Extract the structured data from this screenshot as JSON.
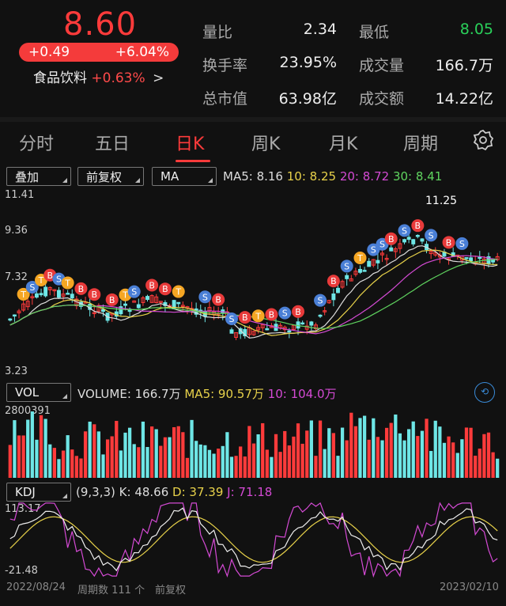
{
  "header": {
    "price": "8.60",
    "change": "+0.49",
    "change_pct": "+6.04%",
    "sector_name": "食品饮料",
    "sector_pct": "+0.63%",
    "sector_arrow": ">",
    "stats": [
      {
        "label": "量比",
        "value": "2.34",
        "color": "#eeeeee"
      },
      {
        "label": "最低",
        "value": "8.05",
        "color": "#2ad05a"
      },
      {
        "label": "换手率",
        "value": "23.95%",
        "color": "#eeeeee"
      },
      {
        "label": "成交量",
        "value": "166.7万",
        "color": "#eeeeee"
      },
      {
        "label": "总市值",
        "value": "63.98亿",
        "color": "#eeeeee"
      },
      {
        "label": "成交额",
        "value": "14.22亿",
        "color": "#eeeeee"
      }
    ]
  },
  "tabs": [
    "分时",
    "五日",
    "日K",
    "周K",
    "月K",
    "周期"
  ],
  "active_tab": "日K",
  "selectors": {
    "overlay": "叠加",
    "adjust": "前复权",
    "indicator": "MA"
  },
  "ma_legend": {
    "ma5": "MA5: 8.16",
    "ma10": "10: 8.25",
    "ma20": "20: 8.72",
    "ma30": "30: 8.41"
  },
  "price_axis": {
    "high": "11.41",
    "mid1": "9.36",
    "mid2": "7.32",
    "low": "3.23",
    "peak_label": "11.25"
  },
  "volume": {
    "selector": "VOL",
    "legend_volume": "VOLUME: 166.7万",
    "legend_ma5": "MA5: 90.57万",
    "legend_ma10": "10: 104.0万",
    "axis_max": "2800391"
  },
  "kdj": {
    "selector": "KDJ",
    "params": "(9,3,3)",
    "k": "K: 48.66",
    "d": "D: 37.39",
    "j": "J: 71.18",
    "axis_max": "113.17",
    "axis_min": "-21.48"
  },
  "footer": {
    "start_date": "2022/08/24",
    "period_count": "周期数 111 个",
    "adjust": "前复权",
    "end_date": "2023/02/10"
  },
  "colors": {
    "up": "#ff3b3b",
    "down": "#6ee6e6",
    "ma5": "#dddddd",
    "ma10": "#e8d24a",
    "ma20": "#d44ad4",
    "ma30": "#5fd45f"
  }
}
